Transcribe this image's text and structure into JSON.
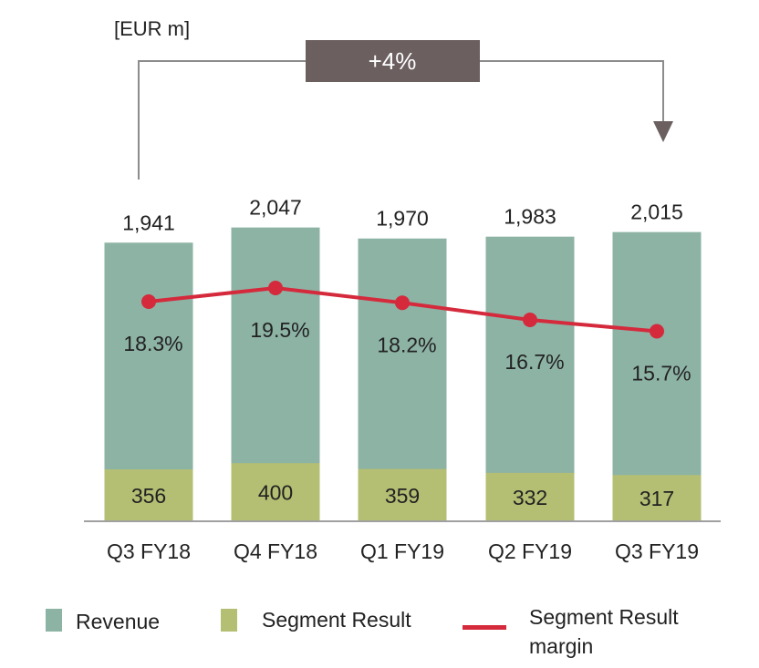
{
  "chart_data": {
    "type": "bar",
    "unit_label": "[EUR m]",
    "categories": [
      "Q3 FY18",
      "Q4 FY18",
      "Q1 FY19",
      "Q2 FY19",
      "Q3 FY19"
    ],
    "series": [
      {
        "name": "Revenue",
        "type": "bar",
        "values": [
          1941,
          2047,
          1970,
          1983,
          2015
        ],
        "labels": [
          "1,941",
          "2,047",
          "1,970",
          "1,983",
          "2,015"
        ]
      },
      {
        "name": "Segment Result",
        "type": "bar",
        "values": [
          356,
          400,
          359,
          332,
          317
        ],
        "labels": [
          "356",
          "400",
          "359",
          "332",
          "317"
        ]
      },
      {
        "name": "Segment Result margin",
        "type": "line",
        "values": [
          18.3,
          19.5,
          18.2,
          16.7,
          15.7
        ],
        "labels": [
          "18.3%",
          "19.5%",
          "18.2%",
          "16.7%",
          "15.7%"
        ]
      }
    ],
    "annotation": "+4%",
    "legend": [
      "Revenue",
      "Segment Result",
      "Segment Result margin"
    ],
    "legend_position": "bottom",
    "colors": {
      "revenue": "#8db3a5",
      "segment_result": "#b4bf73",
      "margin": "#d42a3c",
      "annotation_box": "#6b5f5f",
      "connector": "#8c8c8c",
      "axis": "#a0a0a0"
    }
  }
}
